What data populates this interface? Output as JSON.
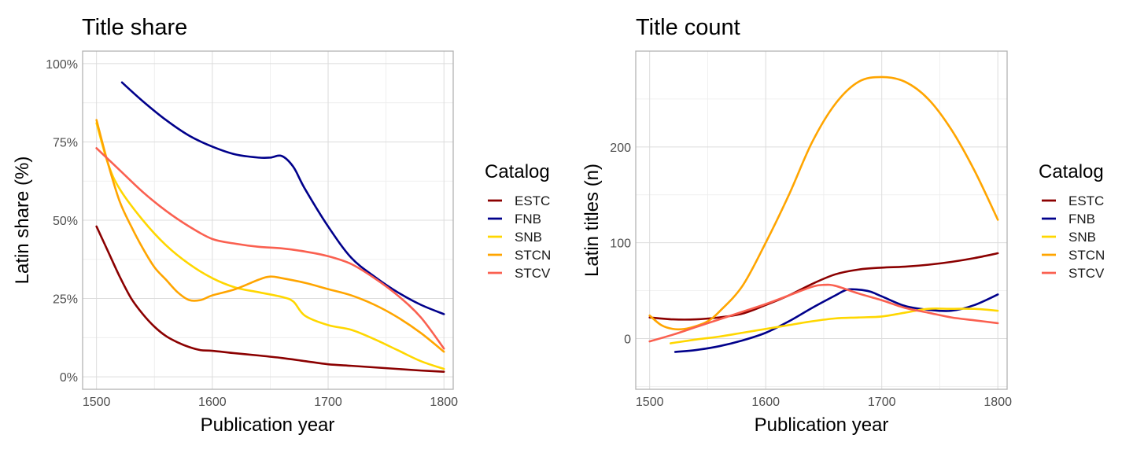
{
  "chart_data": [
    {
      "type": "line",
      "title": "Title share",
      "xlabel": "Publication year",
      "ylabel": "Latin share (%)",
      "xlim": [
        1488,
        1808
      ],
      "ylim": [
        -4,
        104
      ],
      "x_ticks": [
        1500,
        1600,
        1700,
        1800
      ],
      "y_ticks": [
        0,
        25,
        50,
        75,
        100
      ],
      "y_tick_labels": [
        "0%",
        "25%",
        "50%",
        "75%",
        "100%"
      ],
      "grid": true,
      "legend_placement": "right",
      "series": [
        {
          "name": "ESTC",
          "x": [
            1500,
            1510,
            1520,
            1530,
            1540,
            1550,
            1560,
            1570,
            1580,
            1590,
            1600,
            1620,
            1640,
            1660,
            1680,
            1700,
            1720,
            1740,
            1760,
            1780,
            1800
          ],
          "values": [
            48,
            40,
            32,
            25,
            20,
            16,
            13,
            11,
            9.5,
            8.5,
            8.3,
            7.5,
            6.8,
            6,
            5,
            4,
            3.5,
            3,
            2.5,
            2,
            1.6
          ]
        },
        {
          "name": "FNB",
          "x": [
            1522,
            1540,
            1560,
            1580,
            1600,
            1620,
            1640,
            1650,
            1660,
            1670,
            1680,
            1700,
            1720,
            1740,
            1760,
            1780,
            1800
          ],
          "values": [
            94,
            88,
            82,
            77,
            73.5,
            71,
            70,
            70,
            70.5,
            67,
            60,
            48,
            38,
            32,
            27,
            23,
            20
          ]
        },
        {
          "name": "SNB",
          "x": [
            1500,
            1510,
            1520,
            1540,
            1560,
            1580,
            1600,
            1620,
            1640,
            1660,
            1670,
            1680,
            1700,
            1720,
            1740,
            1760,
            1780,
            1800
          ],
          "values": [
            81,
            68,
            60,
            50,
            42,
            36,
            31.5,
            28.5,
            27,
            25.5,
            24,
            19.5,
            16.5,
            15,
            12,
            8.5,
            5,
            2.5
          ]
        },
        {
          "name": "STCN",
          "x": [
            1500,
            1510,
            1520,
            1530,
            1540,
            1550,
            1560,
            1570,
            1580,
            1590,
            1600,
            1620,
            1640,
            1650,
            1660,
            1680,
            1700,
            1720,
            1740,
            1760,
            1780,
            1800
          ],
          "values": [
            82,
            68,
            56,
            48,
            41,
            35,
            31,
            27,
            24.5,
            24.5,
            26,
            28,
            31,
            32,
            31.5,
            30,
            28,
            26,
            23,
            19,
            14,
            8
          ]
        },
        {
          "name": "STCV",
          "x": [
            1500,
            1520,
            1540,
            1560,
            1580,
            1600,
            1620,
            1640,
            1660,
            1680,
            1700,
            1720,
            1740,
            1760,
            1780,
            1800
          ],
          "values": [
            73,
            66,
            59,
            53,
            48,
            44,
            42.5,
            41.5,
            41,
            40,
            38.5,
            36,
            31.5,
            26,
            19,
            9
          ]
        }
      ]
    },
    {
      "type": "line",
      "title": "Title count",
      "xlabel": "Publication year",
      "ylabel": "Latin titles (n)",
      "xlim": [
        1488,
        1808
      ],
      "ylim": [
        -53,
        300
      ],
      "x_ticks": [
        1500,
        1600,
        1700,
        1800
      ],
      "y_ticks": [
        0,
        100,
        200
      ],
      "y_tick_labels": [
        "0",
        "100",
        "200"
      ],
      "grid": true,
      "legend_placement": "right",
      "series": [
        {
          "name": "ESTC",
          "x": [
            1500,
            1520,
            1540,
            1560,
            1580,
            1600,
            1620,
            1640,
            1660,
            1680,
            1700,
            1720,
            1740,
            1760,
            1780,
            1800
          ],
          "values": [
            22,
            20,
            20,
            22,
            26,
            35,
            45,
            57,
            67,
            72,
            74,
            75,
            77,
            80,
            84,
            89
          ]
        },
        {
          "name": "FNB",
          "x": [
            1522,
            1540,
            1560,
            1580,
            1600,
            1620,
            1640,
            1660,
            1670,
            1680,
            1690,
            1700,
            1720,
            1740,
            1760,
            1780,
            1800
          ],
          "values": [
            -14,
            -12,
            -8,
            -2,
            6,
            18,
            32,
            45,
            51,
            51,
            49,
            44,
            34,
            30,
            29,
            35,
            46
          ]
        },
        {
          "name": "SNB",
          "x": [
            1518,
            1540,
            1560,
            1580,
            1600,
            1620,
            1640,
            1660,
            1680,
            1700,
            1720,
            1740,
            1760,
            1780,
            1800
          ],
          "values": [
            -5,
            -1,
            2,
            6,
            10,
            14,
            18,
            21,
            22,
            23,
            27,
            31,
            31,
            31,
            29
          ]
        },
        {
          "name": "STCN",
          "x": [
            1500,
            1510,
            1520,
            1530,
            1540,
            1550,
            1560,
            1580,
            1600,
            1620,
            1640,
            1660,
            1680,
            1700,
            1720,
            1740,
            1760,
            1780,
            1800
          ],
          "values": [
            24,
            14,
            10,
            10,
            13,
            18,
            28,
            55,
            100,
            150,
            205,
            245,
            268,
            273,
            268,
            250,
            218,
            175,
            124
          ]
        },
        {
          "name": "STCV",
          "x": [
            1500,
            1520,
            1540,
            1560,
            1580,
            1600,
            1620,
            1640,
            1650,
            1660,
            1680,
            1700,
            1720,
            1740,
            1760,
            1780,
            1800
          ],
          "values": [
            -3,
            4,
            12,
            20,
            28,
            36,
            45,
            54,
            56,
            55,
            47,
            40,
            32,
            27,
            22,
            19,
            16
          ]
        }
      ]
    }
  ],
  "legend": {
    "title": "Catalog",
    "items": [
      {
        "label": "ESTC",
        "color": "#8B0000"
      },
      {
        "label": "FNB",
        "color": "#00008B"
      },
      {
        "label": "SNB",
        "color": "#FFD700"
      },
      {
        "label": "STCN",
        "color": "#FFA500"
      },
      {
        "label": "STCV",
        "color": "#FA6050"
      }
    ]
  }
}
